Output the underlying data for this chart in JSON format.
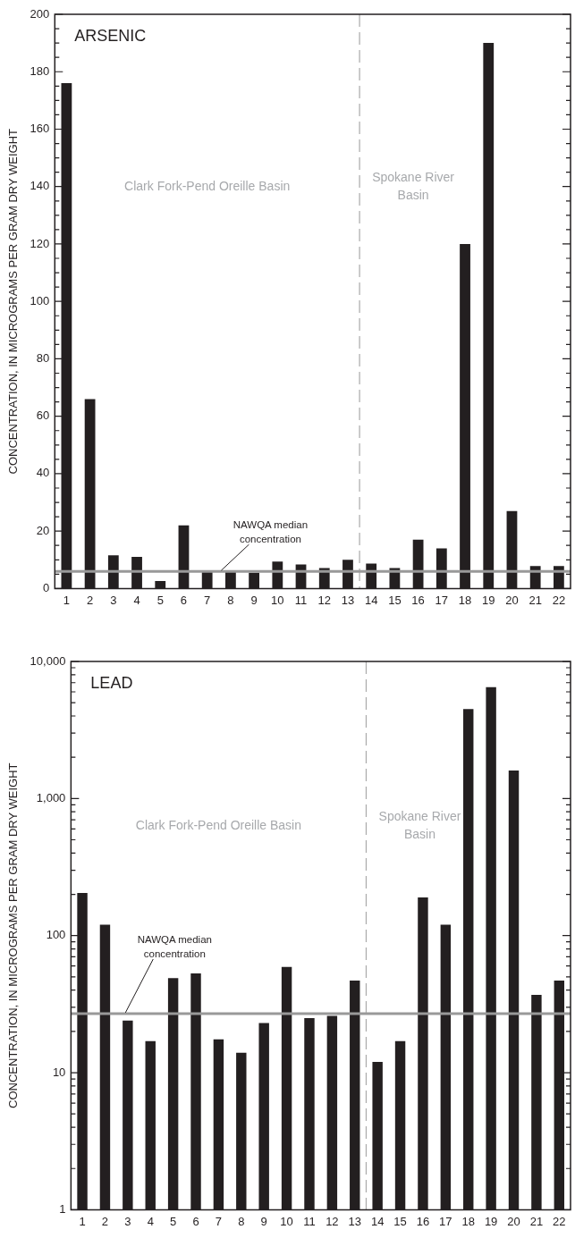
{
  "chart_data": [
    {
      "type": "bar",
      "title": "ARSENIC",
      "ylabel": "CONCENTRATION, IN MICROGRAMS PER GRAM DRY WEIGHT",
      "x": [
        1,
        2,
        3,
        4,
        5,
        6,
        7,
        8,
        9,
        10,
        11,
        12,
        13,
        14,
        15,
        16,
        17,
        18,
        19,
        20,
        21,
        22
      ],
      "values": [
        176,
        66,
        11.6,
        11,
        2.6,
        22,
        6,
        6,
        5.5,
        9.4,
        8.4,
        7.1,
        10,
        8.7,
        7.1,
        17,
        14,
        120,
        190,
        27,
        7.8,
        7.8
      ],
      "color": "#231f20",
      "xlim": [
        0.5,
        22.5
      ],
      "xticks": [
        1,
        2,
        3,
        4,
        5,
        6,
        7,
        8,
        9,
        10,
        11,
        12,
        13,
        14,
        15,
        16,
        17,
        18,
        19,
        20,
        21,
        22
      ],
      "ylim": [
        0,
        200
      ],
      "yticks": [
        0,
        {
          "value": 5,
          "label": null
        },
        {
          "value": 10,
          "label": null
        },
        {
          "value": 15,
          "label": null
        },
        20,
        {
          "value": 25,
          "label": null
        },
        {
          "value": 30,
          "label": null
        },
        {
          "value": 35,
          "label": null
        },
        40,
        {
          "value": 45,
          "label": null
        },
        {
          "value": 50,
          "label": null
        },
        {
          "value": 55,
          "label": null
        },
        60,
        {
          "value": 65,
          "label": null
        },
        {
          "value": 70,
          "label": null
        },
        {
          "value": 75,
          "label": null
        },
        80,
        {
          "value": 85,
          "label": null
        },
        {
          "value": 90,
          "label": null
        },
        {
          "value": 95,
          "label": null
        },
        100,
        {
          "value": 105,
          "label": null
        },
        {
          "value": 110,
          "label": null
        },
        {
          "value": 115,
          "label": null
        },
        120,
        {
          "value": 125,
          "label": null
        },
        {
          "value": 130,
          "label": null
        },
        {
          "value": 135,
          "label": null
        },
        140,
        {
          "value": 145,
          "label": null
        },
        {
          "value": 150,
          "label": null
        },
        {
          "value": 155,
          "label": null
        },
        160,
        {
          "value": 165,
          "label": null
        },
        {
          "value": 170,
          "label": null
        },
        {
          "value": 175,
          "label": null
        },
        180,
        {
          "value": 185,
          "label": null
        },
        {
          "value": 190,
          "label": null
        },
        {
          "value": 195,
          "label": null
        },
        200
      ],
      "ref_lines": [
        {
          "axis": "x",
          "value": 13.5,
          "color": "#aaaaaa",
          "line_style": "dashed"
        },
        {
          "axis": "y",
          "value": 6,
          "color": "#999999"
        }
      ],
      "annotations": [
        "Clark Fork-Pend Oreille Basin",
        "Spokane River Basin",
        {
          "text": "NAWQA median concentration",
          "x": 7.6,
          "y": 6
        }
      ],
      "grid": false,
      "legend": false
    },
    {
      "type": "bar",
      "title": "LEAD",
      "ylabel": "CONCENTRATION, IN MICROGRAMS PER GRAM DRY WEIGHT",
      "x": [
        1,
        2,
        3,
        4,
        5,
        6,
        7,
        8,
        9,
        10,
        11,
        12,
        13,
        14,
        15,
        16,
        17,
        18,
        19,
        20,
        21,
        22
      ],
      "values": [
        205,
        120,
        24,
        17,
        49,
        53,
        17.5,
        14,
        23,
        59,
        25,
        26,
        47,
        12,
        17,
        190,
        120,
        4500,
        6500,
        1600,
        37,
        47
      ],
      "color": "#231f20",
      "log": true,
      "xlim": [
        0.5,
        22.5
      ],
      "xticks": [
        1,
        2,
        3,
        4,
        5,
        6,
        7,
        8,
        9,
        10,
        11,
        12,
        13,
        14,
        15,
        16,
        17,
        18,
        19,
        20,
        21,
        22
      ],
      "ylim": [
        1,
        10000
      ],
      "yticks": [
        1,
        {
          "value": 2,
          "label": null
        },
        {
          "value": 3,
          "label": null
        },
        {
          "value": 4,
          "label": null
        },
        {
          "value": 5,
          "label": null
        },
        {
          "value": 6,
          "label": null
        },
        {
          "value": 7,
          "label": null
        },
        {
          "value": 8,
          "label": null
        },
        {
          "value": 9,
          "label": null
        },
        10,
        {
          "value": 20,
          "label": null
        },
        {
          "value": 30,
          "label": null
        },
        {
          "value": 40,
          "label": null
        },
        {
          "value": 50,
          "label": null
        },
        {
          "value": 60,
          "label": null
        },
        {
          "value": 70,
          "label": null
        },
        {
          "value": 80,
          "label": null
        },
        {
          "value": 90,
          "label": null
        },
        100,
        {
          "value": 200,
          "label": null
        },
        {
          "value": 300,
          "label": null
        },
        {
          "value": 400,
          "label": null
        },
        {
          "value": 500,
          "label": null
        },
        {
          "value": 600,
          "label": null
        },
        {
          "value": 700,
          "label": null
        },
        {
          "value": 800,
          "label": null
        },
        {
          "value": 900,
          "label": null
        },
        {
          "value": 1000,
          "label": "1,000"
        },
        {
          "value": 2000,
          "label": null
        },
        {
          "value": 3000,
          "label": null
        },
        {
          "value": 4000,
          "label": null
        },
        {
          "value": 5000,
          "label": null
        },
        {
          "value": 6000,
          "label": null
        },
        {
          "value": 7000,
          "label": null
        },
        {
          "value": 8000,
          "label": null
        },
        {
          "value": 9000,
          "label": null
        },
        {
          "value": 10000,
          "label": "10,000"
        }
      ],
      "ref_lines": [
        {
          "axis": "x",
          "value": 13.5,
          "color": "#aaaaaa",
          "line_style": "dashed"
        },
        {
          "axis": "y",
          "value": 27,
          "color": "#999999"
        }
      ],
      "annotations": [
        "Clark Fork-Pend Oreille Basin",
        "Spokane River Basin",
        {
          "text": "NAWQA median concentration",
          "x": 2.9,
          "y": 27
        }
      ],
      "grid": false,
      "legend": false
    }
  ]
}
